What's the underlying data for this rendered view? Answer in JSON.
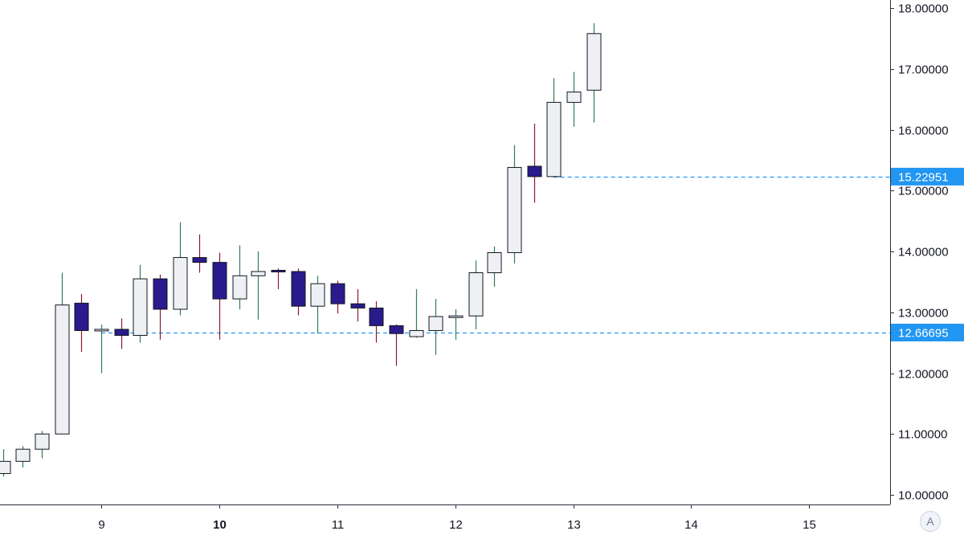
{
  "chart_data": {
    "type": "candlestick",
    "colors": {
      "up_body": "#eef0f4",
      "up_border": "#131722",
      "up_wick": "#2e7d5b",
      "down_body": "#2a1a8c",
      "down_border": "#131722",
      "down_wick": "#8b1a2b",
      "horizontal_line": "#2196f3",
      "axis_line": "#2a2e39",
      "price_tag_bg": "#2196f3",
      "price_tag_text": "#ffffff"
    },
    "y_axis": {
      "min": 9.85,
      "max": 18.1,
      "ticks": [
        {
          "value": 10,
          "label": "10.00000"
        },
        {
          "value": 11,
          "label": "11.00000"
        },
        {
          "value": 12,
          "label": "12.00000"
        },
        {
          "value": 13,
          "label": "13.00000"
        },
        {
          "value": 14,
          "label": "14.00000"
        },
        {
          "value": 15,
          "label": "15.00000"
        },
        {
          "value": 16,
          "label": "16.00000"
        },
        {
          "value": 17,
          "label": "17.00000"
        },
        {
          "value": 18,
          "label": "18.00000"
        }
      ]
    },
    "x_axis": {
      "min": 8.17,
      "max": 15.29,
      "ticks": [
        {
          "value": 9,
          "label": "9",
          "bold": false
        },
        {
          "value": 10,
          "label": "10",
          "bold": true
        },
        {
          "value": 11,
          "label": "11",
          "bold": false
        },
        {
          "value": 12,
          "label": "12",
          "bold": false
        },
        {
          "value": 13,
          "label": "13",
          "bold": false
        },
        {
          "value": 14,
          "label": "14",
          "bold": false
        },
        {
          "value": 15,
          "label": "15",
          "bold": false
        }
      ]
    },
    "candles": [
      {
        "x": 8.17,
        "open": 10.35,
        "high": 10.75,
        "low": 10.3,
        "close": 10.55
      },
      {
        "x": 8.33,
        "open": 10.55,
        "high": 10.8,
        "low": 10.45,
        "close": 10.75
      },
      {
        "x": 8.5,
        "open": 10.75,
        "high": 11.05,
        "low": 10.6,
        "close": 11.0
      },
      {
        "x": 8.67,
        "open": 11.0,
        "high": 13.65,
        "low": 11.0,
        "close": 13.12
      },
      {
        "x": 8.83,
        "open": 13.15,
        "high": 13.3,
        "low": 12.35,
        "close": 12.7
      },
      {
        "x": 9.0,
        "open": 12.7,
        "high": 12.8,
        "low": 12.0,
        "close": 12.72
      },
      {
        "x": 9.17,
        "open": 12.72,
        "high": 12.9,
        "low": 12.4,
        "close": 12.62
      },
      {
        "x": 9.33,
        "open": 12.62,
        "high": 13.78,
        "low": 12.5,
        "close": 13.55
      },
      {
        "x": 9.5,
        "open": 13.55,
        "high": 13.62,
        "low": 12.55,
        "close": 13.05
      },
      {
        "x": 9.67,
        "open": 13.05,
        "high": 14.48,
        "low": 12.95,
        "close": 13.9
      },
      {
        "x": 9.83,
        "open": 13.9,
        "high": 14.28,
        "low": 13.65,
        "close": 13.82
      },
      {
        "x": 10.0,
        "open": 13.82,
        "high": 13.98,
        "low": 12.55,
        "close": 13.22
      },
      {
        "x": 10.17,
        "open": 13.22,
        "high": 14.1,
        "low": 13.05,
        "close": 13.6
      },
      {
        "x": 10.33,
        "open": 13.6,
        "high": 14.0,
        "low": 12.88,
        "close": 13.67
      },
      {
        "x": 10.5,
        "open": 13.69,
        "high": 13.72,
        "low": 13.38,
        "close": 13.67
      },
      {
        "x": 10.67,
        "open": 13.67,
        "high": 13.72,
        "low": 12.95,
        "close": 13.1
      },
      {
        "x": 10.83,
        "open": 13.1,
        "high": 13.6,
        "low": 12.65,
        "close": 13.47
      },
      {
        "x": 11.0,
        "open": 13.47,
        "high": 13.52,
        "low": 12.98,
        "close": 13.14
      },
      {
        "x": 11.17,
        "open": 13.14,
        "high": 13.38,
        "low": 12.85,
        "close": 13.07
      },
      {
        "x": 11.33,
        "open": 13.07,
        "high": 13.18,
        "low": 12.5,
        "close": 12.78
      },
      {
        "x": 11.5,
        "open": 12.78,
        "high": 12.8,
        "low": 12.12,
        "close": 12.65
      },
      {
        "x": 11.67,
        "open": 12.6,
        "high": 13.38,
        "low": 12.58,
        "close": 12.7
      },
      {
        "x": 11.83,
        "open": 12.7,
        "high": 13.22,
        "low": 12.3,
        "close": 12.93
      },
      {
        "x": 12.0,
        "open": 12.93,
        "high": 13.05,
        "low": 12.55,
        "close": 12.94
      },
      {
        "x": 12.17,
        "open": 12.94,
        "high": 13.85,
        "low": 12.72,
        "close": 13.65
      },
      {
        "x": 12.33,
        "open": 13.65,
        "high": 14.08,
        "low": 13.42,
        "close": 13.98
      },
      {
        "x": 12.5,
        "open": 13.98,
        "high": 15.75,
        "low": 13.8,
        "close": 15.38
      },
      {
        "x": 12.67,
        "open": 15.4,
        "high": 16.1,
        "low": 14.8,
        "close": 15.23
      },
      {
        "x": 12.83,
        "open": 15.23,
        "high": 16.85,
        "low": 15.23,
        "close": 16.45
      },
      {
        "x": 13.0,
        "open": 16.45,
        "high": 16.95,
        "low": 16.05,
        "close": 16.62
      },
      {
        "x": 13.17,
        "open": 16.65,
        "high": 17.75,
        "low": 16.12,
        "close": 17.58
      }
    ],
    "horizontal_lines": [
      {
        "value": 15.22951,
        "label": "15.22951",
        "x_start": 12.83
      },
      {
        "value": 12.66695,
        "label": "12.66695",
        "x_start": 9.0
      }
    ]
  },
  "ui": {
    "auto_scale_label": "A"
  }
}
